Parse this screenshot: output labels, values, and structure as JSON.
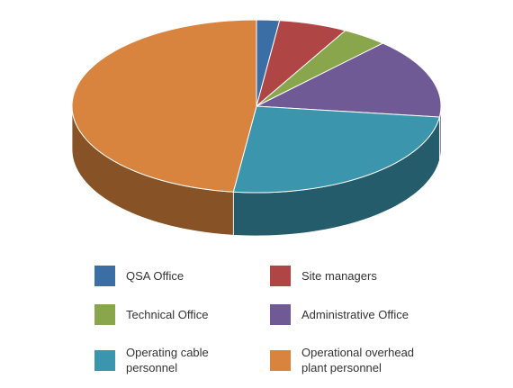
{
  "chart_data": {
    "type": "pie3d",
    "categories": [
      "QSA Office",
      "Site managers",
      "Technical Office",
      "Administrative Office",
      "Operating cable personnel",
      "Operational overhead plant personnel"
    ],
    "values": [
      2,
      6,
      4,
      15,
      25,
      48
    ],
    "colors": [
      "#3a6ea5",
      "#b04545",
      "#8aa64c",
      "#6f5a96",
      "#3a95ad",
      "#d9843e"
    ]
  }
}
